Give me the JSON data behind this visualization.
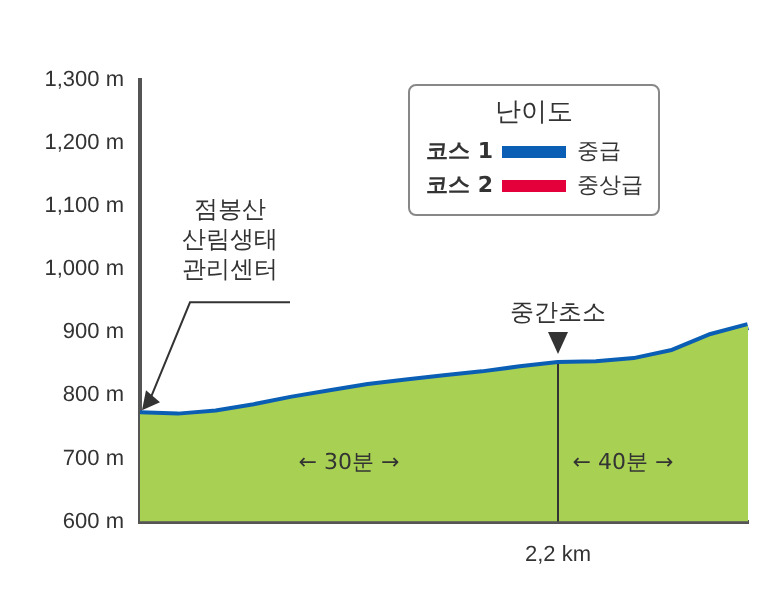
{
  "chart_data": {
    "type": "area",
    "legend_title": "난이도",
    "legend": "top",
    "categories": [
      null,
      null,
      null,
      null,
      null,
      null,
      null,
      null,
      null,
      null,
      null,
      "2,2 km",
      null,
      null,
      null,
      null,
      null
    ],
    "series": [
      {
        "color": "#a8d052",
        "values": [
          770,
          768,
          773,
          783,
          795,
          805,
          815,
          822,
          829,
          835,
          843,
          850,
          851,
          856,
          869,
          894,
          910
        ]
      },
      {
        "type": "line",
        "name": "코스 1",
        "color": "#0a5fb4",
        "values": [
          770,
          768,
          773,
          783,
          795,
          805,
          815,
          822,
          829,
          835,
          843,
          850,
          851,
          856,
          869,
          894,
          910
        ]
      },
      {
        "type": "line",
        "name": "코스 2",
        "color": "#e4003a",
        "values": [
          null,
          null,
          null,
          null,
          null,
          null,
          null,
          null,
          null,
          null,
          null,
          null,
          null,
          null,
          null,
          null,
          null
        ]
      }
    ],
    "ylim": [
      600,
      1300
    ],
    "yticks": [
      {
        "value": 600,
        "label": "600 m"
      },
      {
        "value": 700,
        "label": "700 m"
      },
      {
        "value": 800,
        "label": "800 m"
      },
      {
        "value": 900,
        "label": "900 m"
      },
      {
        "value": 1000,
        "label": "1,000 m"
      },
      {
        "value": 1100,
        "label": "1,100 m"
      },
      {
        "value": 1200,
        "label": "1,200 m"
      },
      {
        "value": 1300,
        "label": "1,300 m"
      }
    ],
    "grid": false,
    "ref_lines": [
      {
        "axis": "x",
        "value": "2,2 km",
        "label": "중간초소",
        "color": "#333333"
      }
    ],
    "annotations": [
      "중급",
      "중상급",
      "점봉산\n산림생태\n관리센터",
      "← 30분 →",
      "← 40분 →"
    ]
  }
}
